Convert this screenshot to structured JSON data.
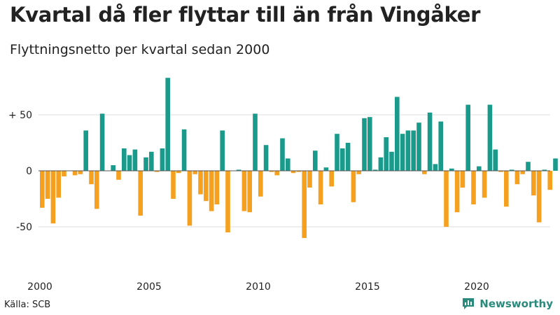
{
  "title": "Kvartal då fler flyttar till än från Vingåker",
  "subtitle": "Flyttningsnetto per kvartal sedan 2000",
  "source": "Källa: SCB",
  "brand": "Newsworthy",
  "colors": {
    "positive": "#1a9a8a",
    "negative": "#f5a01e",
    "grid": "#dddddd",
    "zero": "#555555",
    "brand": "#2a8a7c"
  },
  "chart_data": {
    "type": "bar",
    "start_year": 2000,
    "ylim": [
      -75,
      85
    ],
    "yticks": [
      {
        "value": 50,
        "label": "+ 50"
      },
      {
        "value": 0,
        "label": "0"
      },
      {
        "value": -50,
        "label": "-50"
      }
    ],
    "xticks": [
      "2000",
      "2005",
      "2010",
      "2015",
      "2020"
    ],
    "values": [
      -33,
      -25,
      -47,
      -24,
      -5,
      0,
      -4,
      -3,
      36,
      -12,
      -34,
      51,
      0,
      5,
      -8,
      20,
      14,
      19,
      -40,
      12,
      17,
      -1,
      20,
      83,
      -25,
      -2,
      37,
      -49,
      -3,
      -21,
      -27,
      -36,
      -30,
      36,
      -55,
      0,
      1,
      -36,
      -37,
      51,
      -23,
      23,
      -1,
      -4,
      29,
      11,
      -2,
      -1,
      -60,
      -15,
      18,
      -30,
      3,
      -14,
      33,
      20,
      25,
      -28,
      -3,
      47,
      48,
      1,
      12,
      30,
      17,
      66,
      33,
      36,
      36,
      43,
      -3,
      52,
      6,
      44,
      -50,
      2,
      -37,
      -15,
      59,
      -30,
      4,
      -24,
      59,
      19,
      -1,
      -32,
      1,
      -12,
      -3,
      8,
      -22,
      -46,
      1,
      -17,
      11
    ]
  }
}
